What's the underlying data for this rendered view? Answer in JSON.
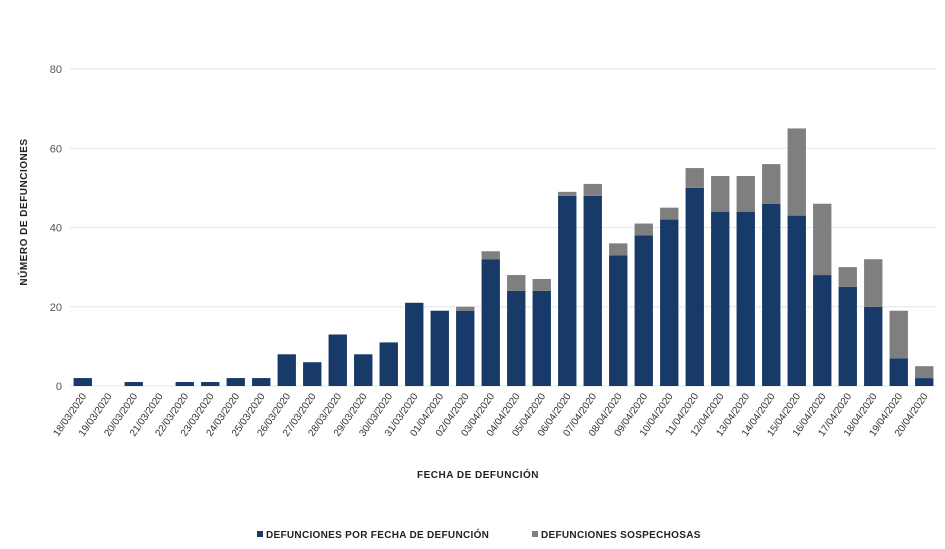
{
  "chart_data": {
    "type": "bar",
    "stacked": true,
    "xlabel": "FECHA DE DEFUNCIÓN",
    "ylabel": "NÚMERO DE DEFUNCIONES",
    "ylim": [
      0,
      80
    ],
    "yticks": [
      0,
      20,
      40,
      60,
      80
    ],
    "grid": true,
    "legend_position": "bottom",
    "categories": [
      "18/03/2020",
      "19/03/2020",
      "20/03/2020",
      "21/03/2020",
      "22/03/2020",
      "23/03/2020",
      "24/03/2020",
      "25/03/2020",
      "26/03/2020",
      "27/03/2020",
      "28/03/2020",
      "29/03/2020",
      "30/03/2020",
      "31/03/2020",
      "01/04/2020",
      "02/04/2020",
      "03/04/2020",
      "04/04/2020",
      "05/04/2020",
      "06/04/2020",
      "07/04/2020",
      "08/04/2020",
      "09/04/2020",
      "10/04/2020",
      "11/04/2020",
      "12/04/2020",
      "13/04/2020",
      "14/04/2020",
      "15/04/2020",
      "16/04/2020",
      "17/04/2020",
      "18/04/2020",
      "19/04/2020",
      "20/04/2020"
    ],
    "series": [
      {
        "name": "DEFUNCIONES POR FECHA DE DEFUNCIÓN",
        "color": "#173a69",
        "values": [
          2,
          0,
          1,
          0,
          1,
          1,
          2,
          2,
          8,
          6,
          13,
          8,
          11,
          21,
          19,
          19,
          32,
          24,
          24,
          48,
          48,
          33,
          38,
          42,
          50,
          44,
          44,
          46,
          43,
          28,
          25,
          20,
          7,
          2
        ]
      },
      {
        "name": "DEFUNCIONES SOSPECHOSAS",
        "color": "#7f7f7f",
        "values": [
          0,
          0,
          0,
          0,
          0,
          0,
          0,
          0,
          0,
          0,
          0,
          0,
          0,
          0,
          0,
          1,
          2,
          4,
          3,
          1,
          3,
          3,
          3,
          3,
          5,
          9,
          9,
          10,
          22,
          18,
          5,
          12,
          12,
          3
        ]
      }
    ]
  }
}
